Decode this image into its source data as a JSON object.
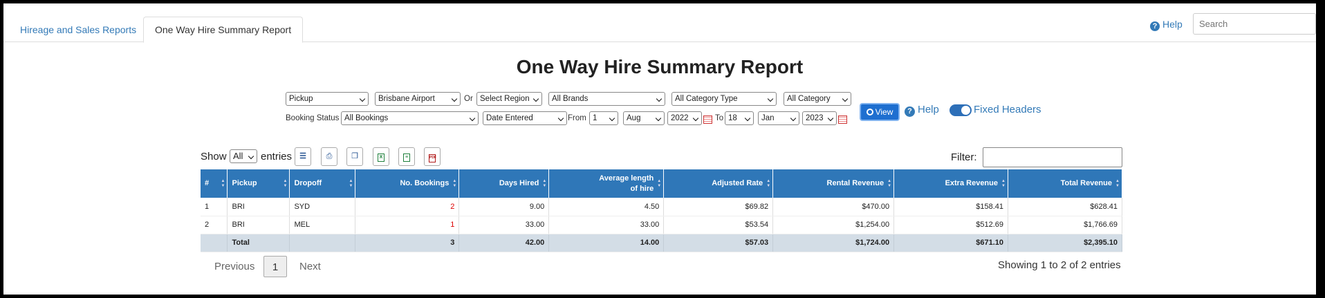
{
  "tabs": [
    {
      "label": "Hireage and Sales Reports"
    },
    {
      "label": "One Way Hire Summary Report"
    }
  ],
  "header": {
    "help_label": "Help",
    "search_placeholder": "Search"
  },
  "page_title": "One Way Hire Summary Report",
  "filters": {
    "location_type": "Pickup",
    "location": "Brisbane Airport",
    "or_label": "Or",
    "region": "Select Region",
    "brand": "All Brands",
    "category_type": "All Category Type",
    "category": "All Category",
    "view_label": "View",
    "help_label": "Help",
    "fixed_headers_label": "Fixed Headers",
    "fixed_headers_on": true,
    "booking_status_label": "Booking Status",
    "booking_status": "All Bookings",
    "date_type": "Date Entered",
    "from_label": "From",
    "from_day": "1",
    "from_month": "Aug",
    "from_year": "2022",
    "to_label": "To",
    "to_day": "18",
    "to_month": "Jan",
    "to_year": "2023"
  },
  "table_controls": {
    "show_label": "Show",
    "entries_value": "All",
    "entries_label": "entries",
    "filter_label": "Filter:"
  },
  "table": {
    "headers": [
      "#",
      "Pickup",
      "Dropoff",
      "No. Bookings",
      "Days Hired",
      "Average length of hire",
      "Adjusted Rate",
      "Rental Revenue",
      "Extra Revenue",
      "Total Revenue"
    ],
    "rows": [
      {
        "num": "1",
        "pickup": "BRI",
        "dropoff": "SYD",
        "bookings": "2",
        "days": "9.00",
        "avg": "4.50",
        "rate": "$69.82",
        "rental": "$470.00",
        "extra": "$158.41",
        "total": "$628.41"
      },
      {
        "num": "2",
        "pickup": "BRI",
        "dropoff": "MEL",
        "bookings": "1",
        "days": "33.00",
        "avg": "33.00",
        "rate": "$53.54",
        "rental": "$1,254.00",
        "extra": "$512.69",
        "total": "$1,766.69"
      }
    ],
    "total": {
      "label": "Total",
      "bookings": "3",
      "days": "42.00",
      "avg": "14.00",
      "rate": "$57.03",
      "rental": "$1,724.00",
      "extra": "$671.10",
      "total": "$2,395.10"
    }
  },
  "pagination": {
    "previous": "Previous",
    "current": "1",
    "next": "Next",
    "showing": "Showing 1 to 2 of 2 entries"
  },
  "colors": {
    "header_blue": "#2f77b8",
    "link_blue": "#337ab7",
    "total_row": "#d3dde6",
    "booking_count_red": "#dd0000"
  }
}
